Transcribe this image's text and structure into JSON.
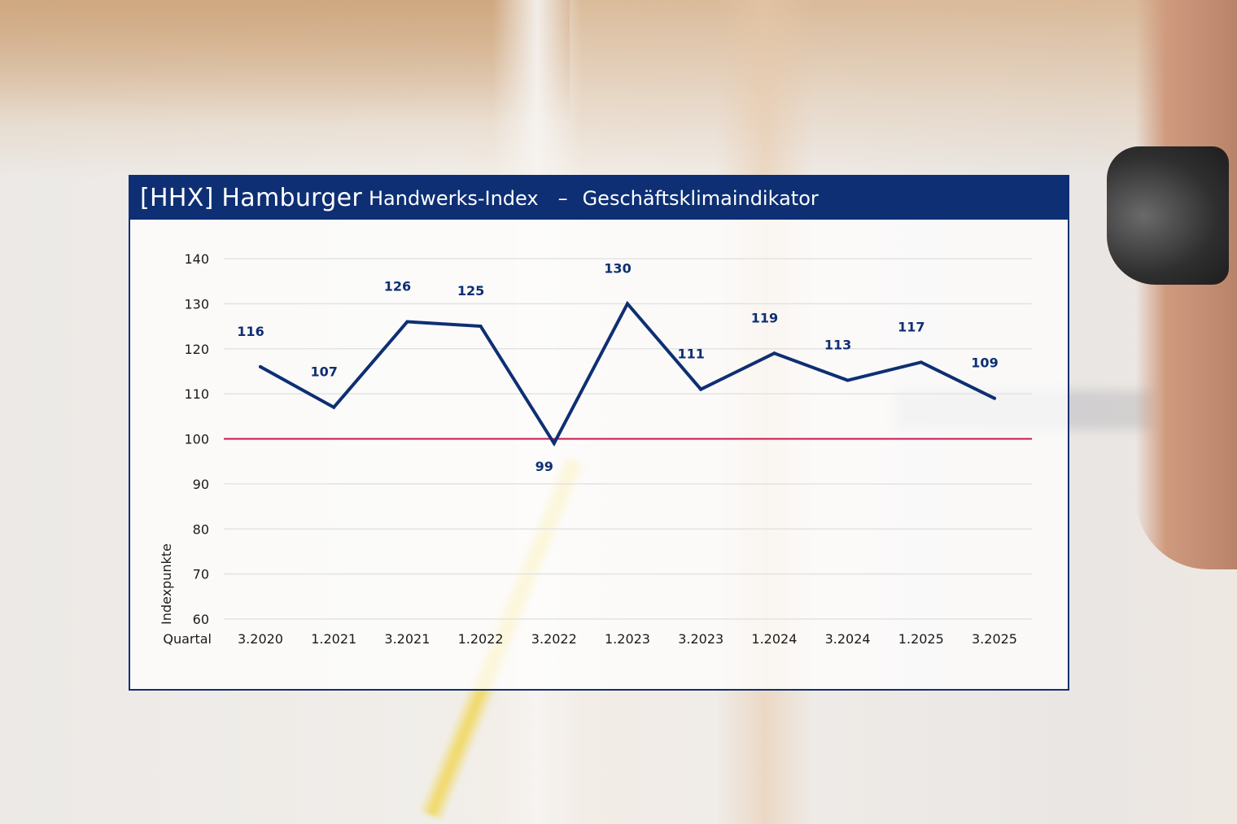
{
  "header": {
    "brand": "[HHX] Hamburger",
    "subtitle": "Handwerks-Index",
    "separator": "–",
    "indicator": "Geschäftsklimaindikator"
  },
  "colors": {
    "header_bg": "#0e2f73",
    "line": "#0e2f73",
    "reference_line": "#c8164f"
  },
  "chart_data": {
    "type": "line",
    "title": "Geschäftsklimaindikator",
    "ylabel": "Indexpunkte",
    "xlabel": "Quartal",
    "categories": [
      "3.2020",
      "1.2021",
      "3.2021",
      "1.2022",
      "3.2022",
      "1.2023",
      "3.2023",
      "1.2024",
      "3.2024",
      "1.2025",
      "3.2025"
    ],
    "series": [
      {
        "values": [
          116,
          107,
          126,
          125,
          99,
          130,
          111,
          119,
          113,
          117,
          109
        ]
      }
    ],
    "ylim": [
      60,
      140
    ],
    "yticks": [
      140,
      130,
      120,
      110,
      100,
      90,
      80,
      70,
      60
    ],
    "reference_line": 100,
    "grid": true,
    "legend": "none"
  }
}
